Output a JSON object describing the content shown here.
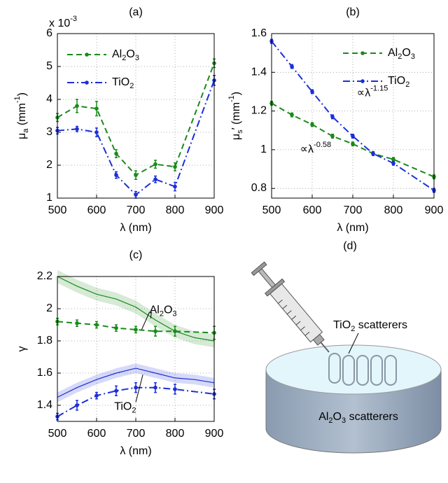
{
  "chart_data": [
    {
      "type": "line",
      "title": "(a)",
      "xlabel": "λ (nm)",
      "ylabel": "μa (mm-1)",
      "y_scale_label": "x 10-3",
      "xlim": [
        500,
        900
      ],
      "ylim": [
        1,
        6
      ],
      "xticks": [
        500,
        600,
        700,
        800,
        900
      ],
      "yticks": [
        1,
        2,
        3,
        4,
        5,
        6
      ],
      "grid": true,
      "legend": "upper-left",
      "series": [
        {
          "name": "Al2O3",
          "color": "#1a8a1a",
          "linestyle": "dashed",
          "marker": true,
          "x": [
            500,
            550,
            600,
            650,
            700,
            750,
            800,
            900
          ],
          "values": [
            3.45,
            3.8,
            3.72,
            2.35,
            1.7,
            2.03,
            1.95,
            5.1
          ],
          "errors": [
            0.12,
            0.2,
            0.22,
            0.12,
            0.13,
            0.12,
            0.12,
            0.13
          ]
        },
        {
          "name": "TiO2",
          "color": "#1c2fd8",
          "linestyle": "dashdot",
          "marker": true,
          "x": [
            500,
            550,
            600,
            650,
            700,
            750,
            800,
            900
          ],
          "values": [
            3.05,
            3.1,
            3.0,
            1.7,
            1.1,
            1.57,
            1.35,
            4.58
          ],
          "errors": [
            0.1,
            0.08,
            0.13,
            0.1,
            0.1,
            0.1,
            0.13,
            0.15
          ]
        }
      ]
    },
    {
      "type": "line",
      "title": "(b)",
      "xlabel": "λ (nm)",
      "ylabel": "μs′ (mm-1)",
      "xlim": [
        500,
        900
      ],
      "ylim": [
        0.75,
        1.6
      ],
      "xticks": [
        500,
        600,
        700,
        800,
        900
      ],
      "yticks": [
        0.8,
        1,
        1.2,
        1.4,
        1.6
      ],
      "grid": true,
      "legend": "upper-right",
      "annotations": [
        "∝λ-1.15",
        "∝λ-0.58"
      ],
      "series": [
        {
          "name": "Al2O3",
          "color": "#1a8a1a",
          "linestyle": "dashed",
          "marker": true,
          "x": [
            500,
            550,
            600,
            650,
            700,
            750,
            800,
            900
          ],
          "values": [
            1.24,
            1.18,
            1.13,
            1.07,
            1.03,
            0.98,
            0.95,
            0.86
          ],
          "errors": [
            0.01,
            0.01,
            0.01,
            0.01,
            0.01,
            0.01,
            0.01,
            0.01
          ]
        },
        {
          "name": "TiO2",
          "color": "#1c2fd8",
          "linestyle": "dashdot",
          "marker": true,
          "x": [
            500,
            550,
            600,
            650,
            700,
            750,
            800,
            900
          ],
          "values": [
            1.56,
            1.43,
            1.3,
            1.17,
            1.07,
            0.98,
            0.93,
            0.79
          ],
          "errors": [
            0.01,
            0.01,
            0.01,
            0.01,
            0.01,
            0.01,
            0.01,
            0.01
          ]
        }
      ]
    },
    {
      "type": "line",
      "title": "(c)",
      "xlabel": "λ (nm)",
      "ylabel": "γ",
      "xlim": [
        500,
        900
      ],
      "ylim": [
        1.3,
        2.2
      ],
      "xticks": [
        500,
        600,
        700,
        800,
        900
      ],
      "yticks": [
        1.4,
        1.6,
        1.8,
        2,
        2.2
      ],
      "grid": true,
      "annotations": [
        "Al2O3",
        "TiO2"
      ],
      "series": [
        {
          "color": "#1a8a1a",
          "linestyle": "solid",
          "marker": false,
          "x": [
            500,
            550,
            600,
            650,
            700,
            750,
            800,
            850,
            900
          ],
          "values": [
            2.2,
            2.14,
            2.09,
            2.06,
            2.01,
            1.93,
            1.86,
            1.82,
            1.8
          ],
          "error": 0.04
        },
        {
          "color": "#1c2fd8",
          "linestyle": "solid",
          "marker": false,
          "x": [
            500,
            550,
            600,
            650,
            700,
            750,
            800,
            850,
            900
          ],
          "values": [
            1.45,
            1.51,
            1.56,
            1.6,
            1.63,
            1.6,
            1.57,
            1.56,
            1.54
          ],
          "error": 0.03
        },
        {
          "color": "#1a8a1a",
          "linestyle": "dashed",
          "marker": true,
          "x": [
            500,
            550,
            600,
            650,
            700,
            750,
            800,
            900
          ],
          "values": [
            1.92,
            1.91,
            1.9,
            1.88,
            1.87,
            1.86,
            1.86,
            1.85
          ],
          "errors": [
            0.02,
            0.02,
            0.02,
            0.02,
            0.02,
            0.03,
            0.03,
            0.04
          ]
        },
        {
          "color": "#1c2fd8",
          "linestyle": "dashdot",
          "marker": true,
          "x": [
            500,
            550,
            600,
            650,
            700,
            750,
            800,
            900
          ],
          "values": [
            1.33,
            1.4,
            1.46,
            1.49,
            1.51,
            1.51,
            1.5,
            1.47
          ],
          "errors": [
            0.02,
            0.03,
            0.02,
            0.03,
            0.03,
            0.03,
            0.03,
            0.03
          ]
        }
      ]
    }
  ],
  "diagram": {
    "title": "(d)",
    "labels": [
      "TiO2 scatterers",
      "Al2O3 scatterers"
    ]
  }
}
